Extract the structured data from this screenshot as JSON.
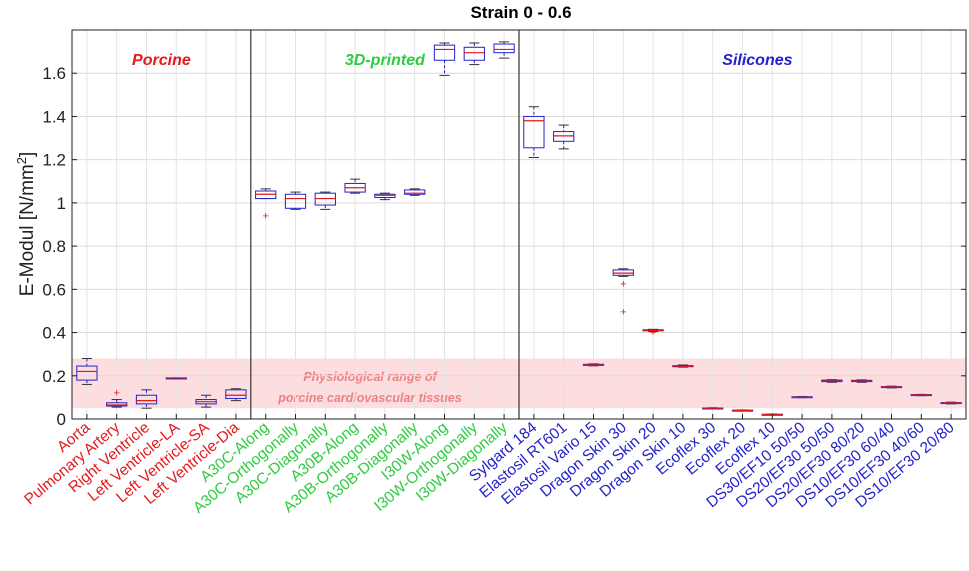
{
  "chart_data": {
    "type": "box",
    "title": "Strain 0 - 0.6",
    "ylabel": "E-Modul [N/mm",
    "ylabel_sup": "2",
    "ylabel_end": "]",
    "ylim": [
      0,
      1.8
    ],
    "yticks": [
      0,
      0.2,
      0.4,
      0.6,
      0.8,
      1,
      1.2,
      1.4,
      1.6
    ],
    "ytick_labels": [
      "0",
      "0.2",
      "0.4",
      "0.6",
      "0.8",
      "1",
      "1.2",
      "1.4",
      "1.6"
    ],
    "grid": true,
    "colors": {
      "porcine": "#e31a1c",
      "printed": "#2ecc40",
      "silicones": "#2222cc",
      "box": "#2222cc",
      "median": "#e31a1c",
      "outlier": "#e31a1c",
      "band": "#fcdde0",
      "band_text": "#f08080"
    },
    "physiological_range": {
      "ymin": 0.05,
      "ymax": 0.28,
      "label_line1": "Physiological range of",
      "label_line2": "porcine cardiovascular tissues"
    },
    "groups": [
      {
        "name": "Porcine",
        "color": "#e31a1c",
        "start": 0,
        "end": 5
      },
      {
        "name": "3D-printed",
        "color": "#2ecc40",
        "start": 6,
        "end": 14
      },
      {
        "name": "Silicones",
        "color": "#2222cc",
        "start": 15,
        "end": 30
      }
    ],
    "categories": [
      "Aorta",
      "Pulmonary Artery",
      "Right Ventricle",
      "Left Ventricle-LA",
      "Left Ventricle-SA",
      "Left Ventricle-Dia",
      "A30C-Along",
      "A30C-Orthogonally",
      "A30C-Diagonally",
      "A30B-Along",
      "A30B-Orthogonally",
      "A30B-Diagonally",
      "I30W-Along",
      "I30W-Orthogonally",
      "I30W-Diagonally",
      "Sylgard 184",
      "Elastosil RT601",
      "Elastosil Vario 15",
      "Dragon Skin 30",
      "Dragon Skin 20",
      "Dragon Skin 10",
      "Ecoflex 30",
      "Ecoflex 20",
      "Ecoflex 10",
      "DS30/EF10 50/50",
      "DS20/EF30 50/50",
      "DS20/EF30 80/20",
      "DS10/EF30 60/40",
      "DS10/EF30 40/60",
      "DS10/EF30 20/80"
    ],
    "boxes": [
      {
        "min": 0.16,
        "q1": 0.18,
        "median": 0.22,
        "q3": 0.245,
        "max": 0.28,
        "outliers": []
      },
      {
        "min": 0.055,
        "q1": 0.06,
        "median": 0.065,
        "q3": 0.075,
        "max": 0.09,
        "outliers": [
          0.12
        ]
      },
      {
        "min": 0.05,
        "q1": 0.07,
        "median": 0.085,
        "q3": 0.11,
        "max": 0.135,
        "outliers": []
      },
      {
        "min": 0.19,
        "q1": 0.19,
        "median": 0.19,
        "q3": 0.19,
        "max": 0.19,
        "outliers": []
      },
      {
        "min": 0.055,
        "q1": 0.07,
        "median": 0.08,
        "q3": 0.09,
        "max": 0.11,
        "outliers": []
      },
      {
        "min": 0.085,
        "q1": 0.095,
        "median": 0.11,
        "q3": 0.135,
        "max": 0.14,
        "outliers": []
      },
      {
        "min": 1.02,
        "q1": 1.02,
        "median": 1.04,
        "q3": 1.055,
        "max": 1.065,
        "outliers": [
          0.94
        ]
      },
      {
        "min": 0.97,
        "q1": 0.975,
        "median": 1.02,
        "q3": 1.04,
        "max": 1.05,
        "outliers": []
      },
      {
        "min": 0.97,
        "q1": 0.99,
        "median": 1.02,
        "q3": 1.045,
        "max": 1.05,
        "outliers": []
      },
      {
        "min": 1.045,
        "q1": 1.05,
        "median": 1.07,
        "q3": 1.09,
        "max": 1.11,
        "outliers": []
      },
      {
        "min": 1.015,
        "q1": 1.025,
        "median": 1.035,
        "q3": 1.04,
        "max": 1.045,
        "outliers": []
      },
      {
        "min": 1.035,
        "q1": 1.04,
        "median": 1.045,
        "q3": 1.06,
        "max": 1.065,
        "outliers": []
      },
      {
        "min": 1.59,
        "q1": 1.66,
        "median": 1.71,
        "q3": 1.73,
        "max": 1.74,
        "outliers": []
      },
      {
        "min": 1.64,
        "q1": 1.66,
        "median": 1.695,
        "q3": 1.72,
        "max": 1.74,
        "outliers": []
      },
      {
        "min": 1.67,
        "q1": 1.695,
        "median": 1.71,
        "q3": 1.735,
        "max": 1.745,
        "outliers": []
      },
      {
        "min": 1.21,
        "q1": 1.255,
        "median": 1.38,
        "q3": 1.4,
        "max": 1.445,
        "outliers": []
      },
      {
        "min": 1.25,
        "q1": 1.285,
        "median": 1.31,
        "q3": 1.33,
        "max": 1.36,
        "outliers": []
      },
      {
        "min": 0.246,
        "q1": 0.248,
        "median": 0.25,
        "q3": 0.253,
        "max": 0.255,
        "outliers": []
      },
      {
        "min": 0.66,
        "q1": 0.665,
        "median": 0.675,
        "q3": 0.69,
        "max": 0.695,
        "outliers": [
          0.625,
          0.495
        ]
      },
      {
        "min": 0.405,
        "q1": 0.408,
        "median": 0.41,
        "q3": 0.413,
        "max": 0.415,
        "outliers": [
          0.4
        ]
      },
      {
        "min": 0.24,
        "q1": 0.242,
        "median": 0.244,
        "q3": 0.247,
        "max": 0.25,
        "outliers": []
      },
      {
        "min": 0.05,
        "q1": 0.05,
        "median": 0.05,
        "q3": 0.051,
        "max": 0.052,
        "outliers": []
      },
      {
        "min": 0.04,
        "q1": 0.04,
        "median": 0.04,
        "q3": 0.041,
        "max": 0.042,
        "outliers": []
      },
      {
        "min": 0.02,
        "q1": 0.02,
        "median": 0.021,
        "q3": 0.022,
        "max": 0.023,
        "outliers": []
      },
      {
        "min": 0.099,
        "q1": 0.1,
        "median": 0.101,
        "q3": 0.103,
        "max": 0.104,
        "outliers": []
      },
      {
        "min": 0.17,
        "q1": 0.173,
        "median": 0.176,
        "q3": 0.18,
        "max": 0.182,
        "outliers": []
      },
      {
        "min": 0.17,
        "q1": 0.173,
        "median": 0.176,
        "q3": 0.179,
        "max": 0.181,
        "outliers": []
      },
      {
        "min": 0.144,
        "q1": 0.146,
        "median": 0.148,
        "q3": 0.15,
        "max": 0.152,
        "outliers": []
      },
      {
        "min": 0.108,
        "q1": 0.11,
        "median": 0.111,
        "q3": 0.113,
        "max": 0.114,
        "outliers": []
      },
      {
        "min": 0.07,
        "q1": 0.072,
        "median": 0.074,
        "q3": 0.076,
        "max": 0.078,
        "outliers": []
      }
    ]
  }
}
